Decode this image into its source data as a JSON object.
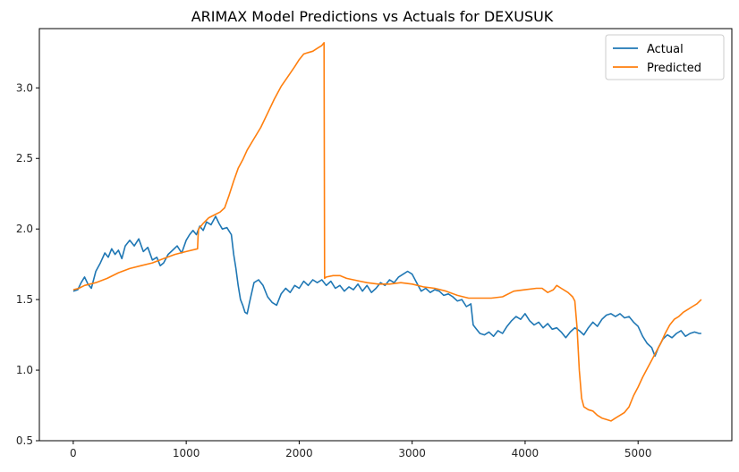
{
  "chart_data": {
    "type": "line",
    "title": "ARIMAX Model Predictions vs Actuals for DEXUSUK",
    "xlabel": "",
    "ylabel": "",
    "xlim": [
      -300,
      5830
    ],
    "ylim": [
      0.5,
      3.42
    ],
    "xticks": [
      0,
      1000,
      2000,
      3000,
      4000,
      5000
    ],
    "yticks": [
      0.5,
      1.0,
      1.5,
      2.0,
      2.5,
      3.0
    ],
    "ytick_labels": [
      "0.5",
      "1.0",
      "1.5",
      "2.0",
      "2.5",
      "3.0"
    ],
    "grid": false,
    "legend": "top-right",
    "series": [
      {
        "name": "Actual",
        "color": "#1f77b4",
        "points": [
          [
            0,
            1.56
          ],
          [
            40,
            1.57
          ],
          [
            70,
            1.62
          ],
          [
            100,
            1.66
          ],
          [
            130,
            1.61
          ],
          [
            160,
            1.58
          ],
          [
            200,
            1.7
          ],
          [
            240,
            1.76
          ],
          [
            280,
            1.83
          ],
          [
            310,
            1.8
          ],
          [
            340,
            1.86
          ],
          [
            370,
            1.82
          ],
          [
            400,
            1.85
          ],
          [
            430,
            1.79
          ],
          [
            460,
            1.88
          ],
          [
            500,
            1.92
          ],
          [
            540,
            1.88
          ],
          [
            580,
            1.93
          ],
          [
            620,
            1.84
          ],
          [
            660,
            1.87
          ],
          [
            700,
            1.78
          ],
          [
            740,
            1.8
          ],
          [
            770,
            1.74
          ],
          [
            800,
            1.76
          ],
          [
            840,
            1.82
          ],
          [
            880,
            1.85
          ],
          [
            920,
            1.88
          ],
          [
            960,
            1.83
          ],
          [
            1000,
            1.92
          ],
          [
            1030,
            1.96
          ],
          [
            1060,
            1.99
          ],
          [
            1090,
            1.96
          ],
          [
            1120,
            2.02
          ],
          [
            1150,
            1.99
          ],
          [
            1180,
            2.05
          ],
          [
            1220,
            2.03
          ],
          [
            1260,
            2.09
          ],
          [
            1290,
            2.04
          ],
          [
            1320,
            2.0
          ],
          [
            1360,
            2.01
          ],
          [
            1400,
            1.96
          ],
          [
            1420,
            1.82
          ],
          [
            1440,
            1.72
          ],
          [
            1460,
            1.6
          ],
          [
            1480,
            1.5
          ],
          [
            1500,
            1.46
          ],
          [
            1520,
            1.41
          ],
          [
            1540,
            1.4
          ],
          [
            1560,
            1.48
          ],
          [
            1580,
            1.55
          ],
          [
            1600,
            1.62
          ],
          [
            1640,
            1.64
          ],
          [
            1680,
            1.6
          ],
          [
            1720,
            1.52
          ],
          [
            1760,
            1.48
          ],
          [
            1800,
            1.46
          ],
          [
            1840,
            1.54
          ],
          [
            1880,
            1.58
          ],
          [
            1920,
            1.55
          ],
          [
            1960,
            1.6
          ],
          [
            2000,
            1.58
          ],
          [
            2040,
            1.63
          ],
          [
            2080,
            1.6
          ],
          [
            2120,
            1.64
          ],
          [
            2160,
            1.62
          ],
          [
            2200,
            1.64
          ],
          [
            2240,
            1.6
          ],
          [
            2280,
            1.63
          ],
          [
            2320,
            1.58
          ],
          [
            2360,
            1.6
          ],
          [
            2400,
            1.56
          ],
          [
            2440,
            1.59
          ],
          [
            2480,
            1.57
          ],
          [
            2520,
            1.61
          ],
          [
            2560,
            1.56
          ],
          [
            2600,
            1.6
          ],
          [
            2640,
            1.55
          ],
          [
            2680,
            1.58
          ],
          [
            2720,
            1.62
          ],
          [
            2760,
            1.6
          ],
          [
            2800,
            1.64
          ],
          [
            2840,
            1.62
          ],
          [
            2880,
            1.66
          ],
          [
            2920,
            1.68
          ],
          [
            2960,
            1.7
          ],
          [
            3000,
            1.68
          ],
          [
            3040,
            1.62
          ],
          [
            3080,
            1.56
          ],
          [
            3120,
            1.58
          ],
          [
            3160,
            1.55
          ],
          [
            3200,
            1.57
          ],
          [
            3240,
            1.56
          ],
          [
            3280,
            1.53
          ],
          [
            3320,
            1.54
          ],
          [
            3360,
            1.52
          ],
          [
            3400,
            1.49
          ],
          [
            3440,
            1.5
          ],
          [
            3480,
            1.45
          ],
          [
            3520,
            1.47
          ],
          [
            3540,
            1.32
          ],
          [
            3560,
            1.3
          ],
          [
            3600,
            1.26
          ],
          [
            3640,
            1.25
          ],
          [
            3680,
            1.27
          ],
          [
            3720,
            1.24
          ],
          [
            3760,
            1.28
          ],
          [
            3800,
            1.26
          ],
          [
            3840,
            1.31
          ],
          [
            3880,
            1.35
          ],
          [
            3920,
            1.38
          ],
          [
            3960,
            1.36
          ],
          [
            4000,
            1.4
          ],
          [
            4040,
            1.35
          ],
          [
            4080,
            1.32
          ],
          [
            4120,
            1.34
          ],
          [
            4160,
            1.3
          ],
          [
            4200,
            1.33
          ],
          [
            4240,
            1.29
          ],
          [
            4280,
            1.3
          ],
          [
            4320,
            1.27
          ],
          [
            4360,
            1.23
          ],
          [
            4400,
            1.27
          ],
          [
            4440,
            1.3
          ],
          [
            4480,
            1.28
          ],
          [
            4520,
            1.25
          ],
          [
            4560,
            1.3
          ],
          [
            4600,
            1.34
          ],
          [
            4640,
            1.31
          ],
          [
            4680,
            1.36
          ],
          [
            4720,
            1.39
          ],
          [
            4760,
            1.4
          ],
          [
            4800,
            1.38
          ],
          [
            4840,
            1.4
          ],
          [
            4880,
            1.37
          ],
          [
            4920,
            1.38
          ],
          [
            4960,
            1.34
          ],
          [
            5000,
            1.31
          ],
          [
            5040,
            1.24
          ],
          [
            5080,
            1.19
          ],
          [
            5120,
            1.16
          ],
          [
            5150,
            1.1
          ],
          [
            5180,
            1.16
          ],
          [
            5220,
            1.22
          ],
          [
            5260,
            1.25
          ],
          [
            5300,
            1.23
          ],
          [
            5340,
            1.26
          ],
          [
            5380,
            1.28
          ],
          [
            5420,
            1.24
          ],
          [
            5460,
            1.26
          ],
          [
            5500,
            1.27
          ],
          [
            5540,
            1.26
          ],
          [
            5560,
            1.26
          ]
        ]
      },
      {
        "name": "Predicted",
        "color": "#ff7f0e",
        "points": [
          [
            0,
            1.57
          ],
          [
            50,
            1.58
          ],
          [
            100,
            1.6
          ],
          [
            200,
            1.62
          ],
          [
            300,
            1.65
          ],
          [
            400,
            1.69
          ],
          [
            500,
            1.72
          ],
          [
            600,
            1.74
          ],
          [
            700,
            1.76
          ],
          [
            800,
            1.79
          ],
          [
            900,
            1.82
          ],
          [
            1000,
            1.84
          ],
          [
            1100,
            1.86
          ],
          [
            1105,
            1.95
          ],
          [
            1110,
            2.0
          ],
          [
            1150,
            2.04
          ],
          [
            1200,
            2.08
          ],
          [
            1250,
            2.1
          ],
          [
            1300,
            2.12
          ],
          [
            1340,
            2.15
          ],
          [
            1380,
            2.24
          ],
          [
            1420,
            2.34
          ],
          [
            1460,
            2.43
          ],
          [
            1500,
            2.49
          ],
          [
            1540,
            2.56
          ],
          [
            1600,
            2.64
          ],
          [
            1660,
            2.72
          ],
          [
            1720,
            2.82
          ],
          [
            1780,
            2.92
          ],
          [
            1840,
            3.01
          ],
          [
            1900,
            3.08
          ],
          [
            1960,
            3.15
          ],
          [
            2000,
            3.2
          ],
          [
            2040,
            3.24
          ],
          [
            2080,
            3.25
          ],
          [
            2120,
            3.26
          ],
          [
            2160,
            3.28
          ],
          [
            2200,
            3.3
          ],
          [
            2220,
            3.32
          ],
          [
            2225,
            1.65
          ],
          [
            2240,
            1.66
          ],
          [
            2300,
            1.67
          ],
          [
            2360,
            1.67
          ],
          [
            2420,
            1.65
          ],
          [
            2480,
            1.64
          ],
          [
            2540,
            1.63
          ],
          [
            2600,
            1.62
          ],
          [
            2700,
            1.61
          ],
          [
            2800,
            1.61
          ],
          [
            2900,
            1.62
          ],
          [
            3000,
            1.61
          ],
          [
            3100,
            1.59
          ],
          [
            3200,
            1.58
          ],
          [
            3300,
            1.56
          ],
          [
            3400,
            1.53
          ],
          [
            3500,
            1.51
          ],
          [
            3600,
            1.51
          ],
          [
            3700,
            1.51
          ],
          [
            3800,
            1.52
          ],
          [
            3900,
            1.56
          ],
          [
            4000,
            1.57
          ],
          [
            4100,
            1.58
          ],
          [
            4150,
            1.58
          ],
          [
            4200,
            1.55
          ],
          [
            4250,
            1.57
          ],
          [
            4280,
            1.6
          ],
          [
            4320,
            1.58
          ],
          [
            4380,
            1.55
          ],
          [
            4420,
            1.52
          ],
          [
            4440,
            1.49
          ],
          [
            4460,
            1.3
          ],
          [
            4480,
            1.0
          ],
          [
            4500,
            0.8
          ],
          [
            4520,
            0.74
          ],
          [
            4560,
            0.72
          ],
          [
            4600,
            0.71
          ],
          [
            4640,
            0.68
          ],
          [
            4680,
            0.66
          ],
          [
            4720,
            0.65
          ],
          [
            4760,
            0.64
          ],
          [
            4800,
            0.66
          ],
          [
            4840,
            0.68
          ],
          [
            4880,
            0.7
          ],
          [
            4920,
            0.74
          ],
          [
            4960,
            0.82
          ],
          [
            5000,
            0.88
          ],
          [
            5040,
            0.95
          ],
          [
            5080,
            1.01
          ],
          [
            5120,
            1.07
          ],
          [
            5160,
            1.13
          ],
          [
            5200,
            1.19
          ],
          [
            5240,
            1.26
          ],
          [
            5280,
            1.32
          ],
          [
            5320,
            1.36
          ],
          [
            5360,
            1.38
          ],
          [
            5400,
            1.41
          ],
          [
            5440,
            1.43
          ],
          [
            5480,
            1.45
          ],
          [
            5520,
            1.47
          ],
          [
            5560,
            1.5
          ]
        ]
      }
    ]
  }
}
